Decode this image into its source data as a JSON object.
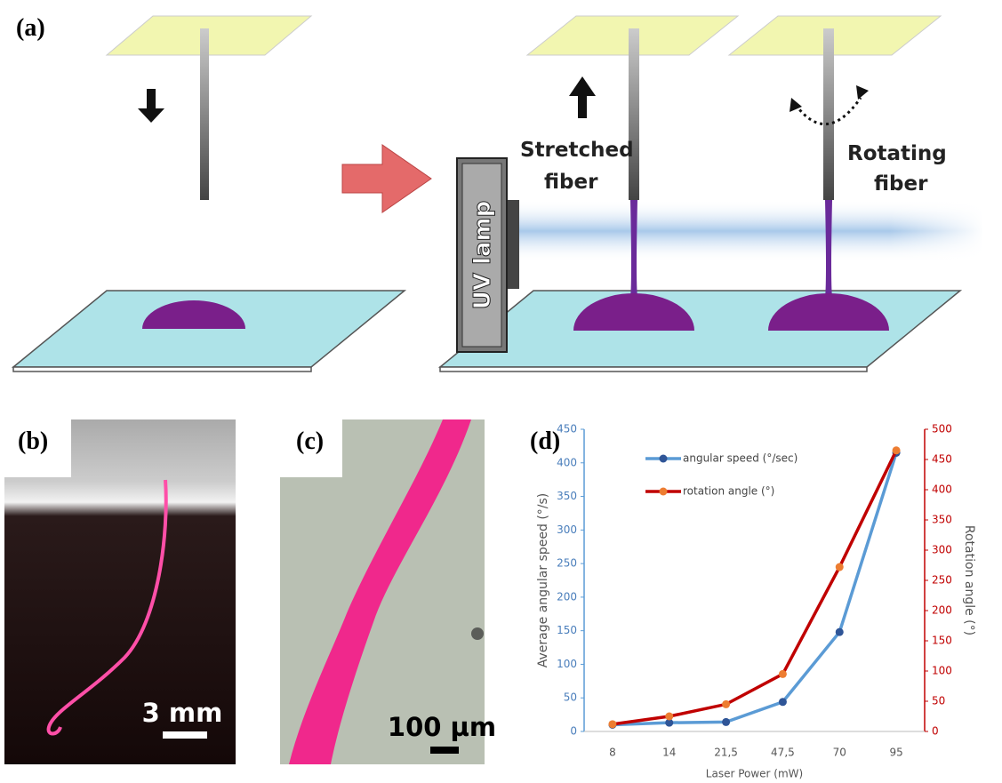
{
  "figure": {
    "a": {
      "label": "(a)",
      "uv_lamp": "UV lamp",
      "stretched_fiber": [
        "Stretched",
        "fiber"
      ],
      "rotating_fiber": [
        "Rotating",
        "fiber"
      ]
    },
    "b": {
      "label": "(b)",
      "scale_bar": "3 mm"
    },
    "c": {
      "label": "(c)",
      "scale_bar": "100 µm"
    },
    "d": {
      "label": "(d)"
    }
  },
  "chart_data": {
    "type": "line",
    "x_label": "Laser Power (mW)",
    "y_label": "Average angular speed (°/s)",
    "y2_label": "Rotation angle (°)",
    "categories": [
      "8",
      "14",
      "21,5",
      "47,5",
      "70",
      "95"
    ],
    "series": [
      {
        "name": "angular speed (°/sec)",
        "color": "#5b9bd5",
        "marker_color": "#2f5597",
        "values": [
          10,
          13,
          14,
          44,
          148,
          415
        ]
      },
      {
        "name": "rotation angle (°)",
        "color": "#c00000",
        "marker_color": "#ed7d31",
        "axis": "y2",
        "values": [
          12,
          25,
          45,
          95,
          272,
          465
        ]
      }
    ],
    "ylim": [
      0,
      450
    ],
    "yticks": [
      0,
      50,
      100,
      150,
      200,
      250,
      300,
      350,
      400,
      450
    ],
    "y2lim": [
      0,
      500
    ],
    "y2ticks": [
      0,
      50,
      100,
      150,
      200,
      250,
      300,
      350,
      400,
      450,
      500
    ],
    "grid": false
  }
}
